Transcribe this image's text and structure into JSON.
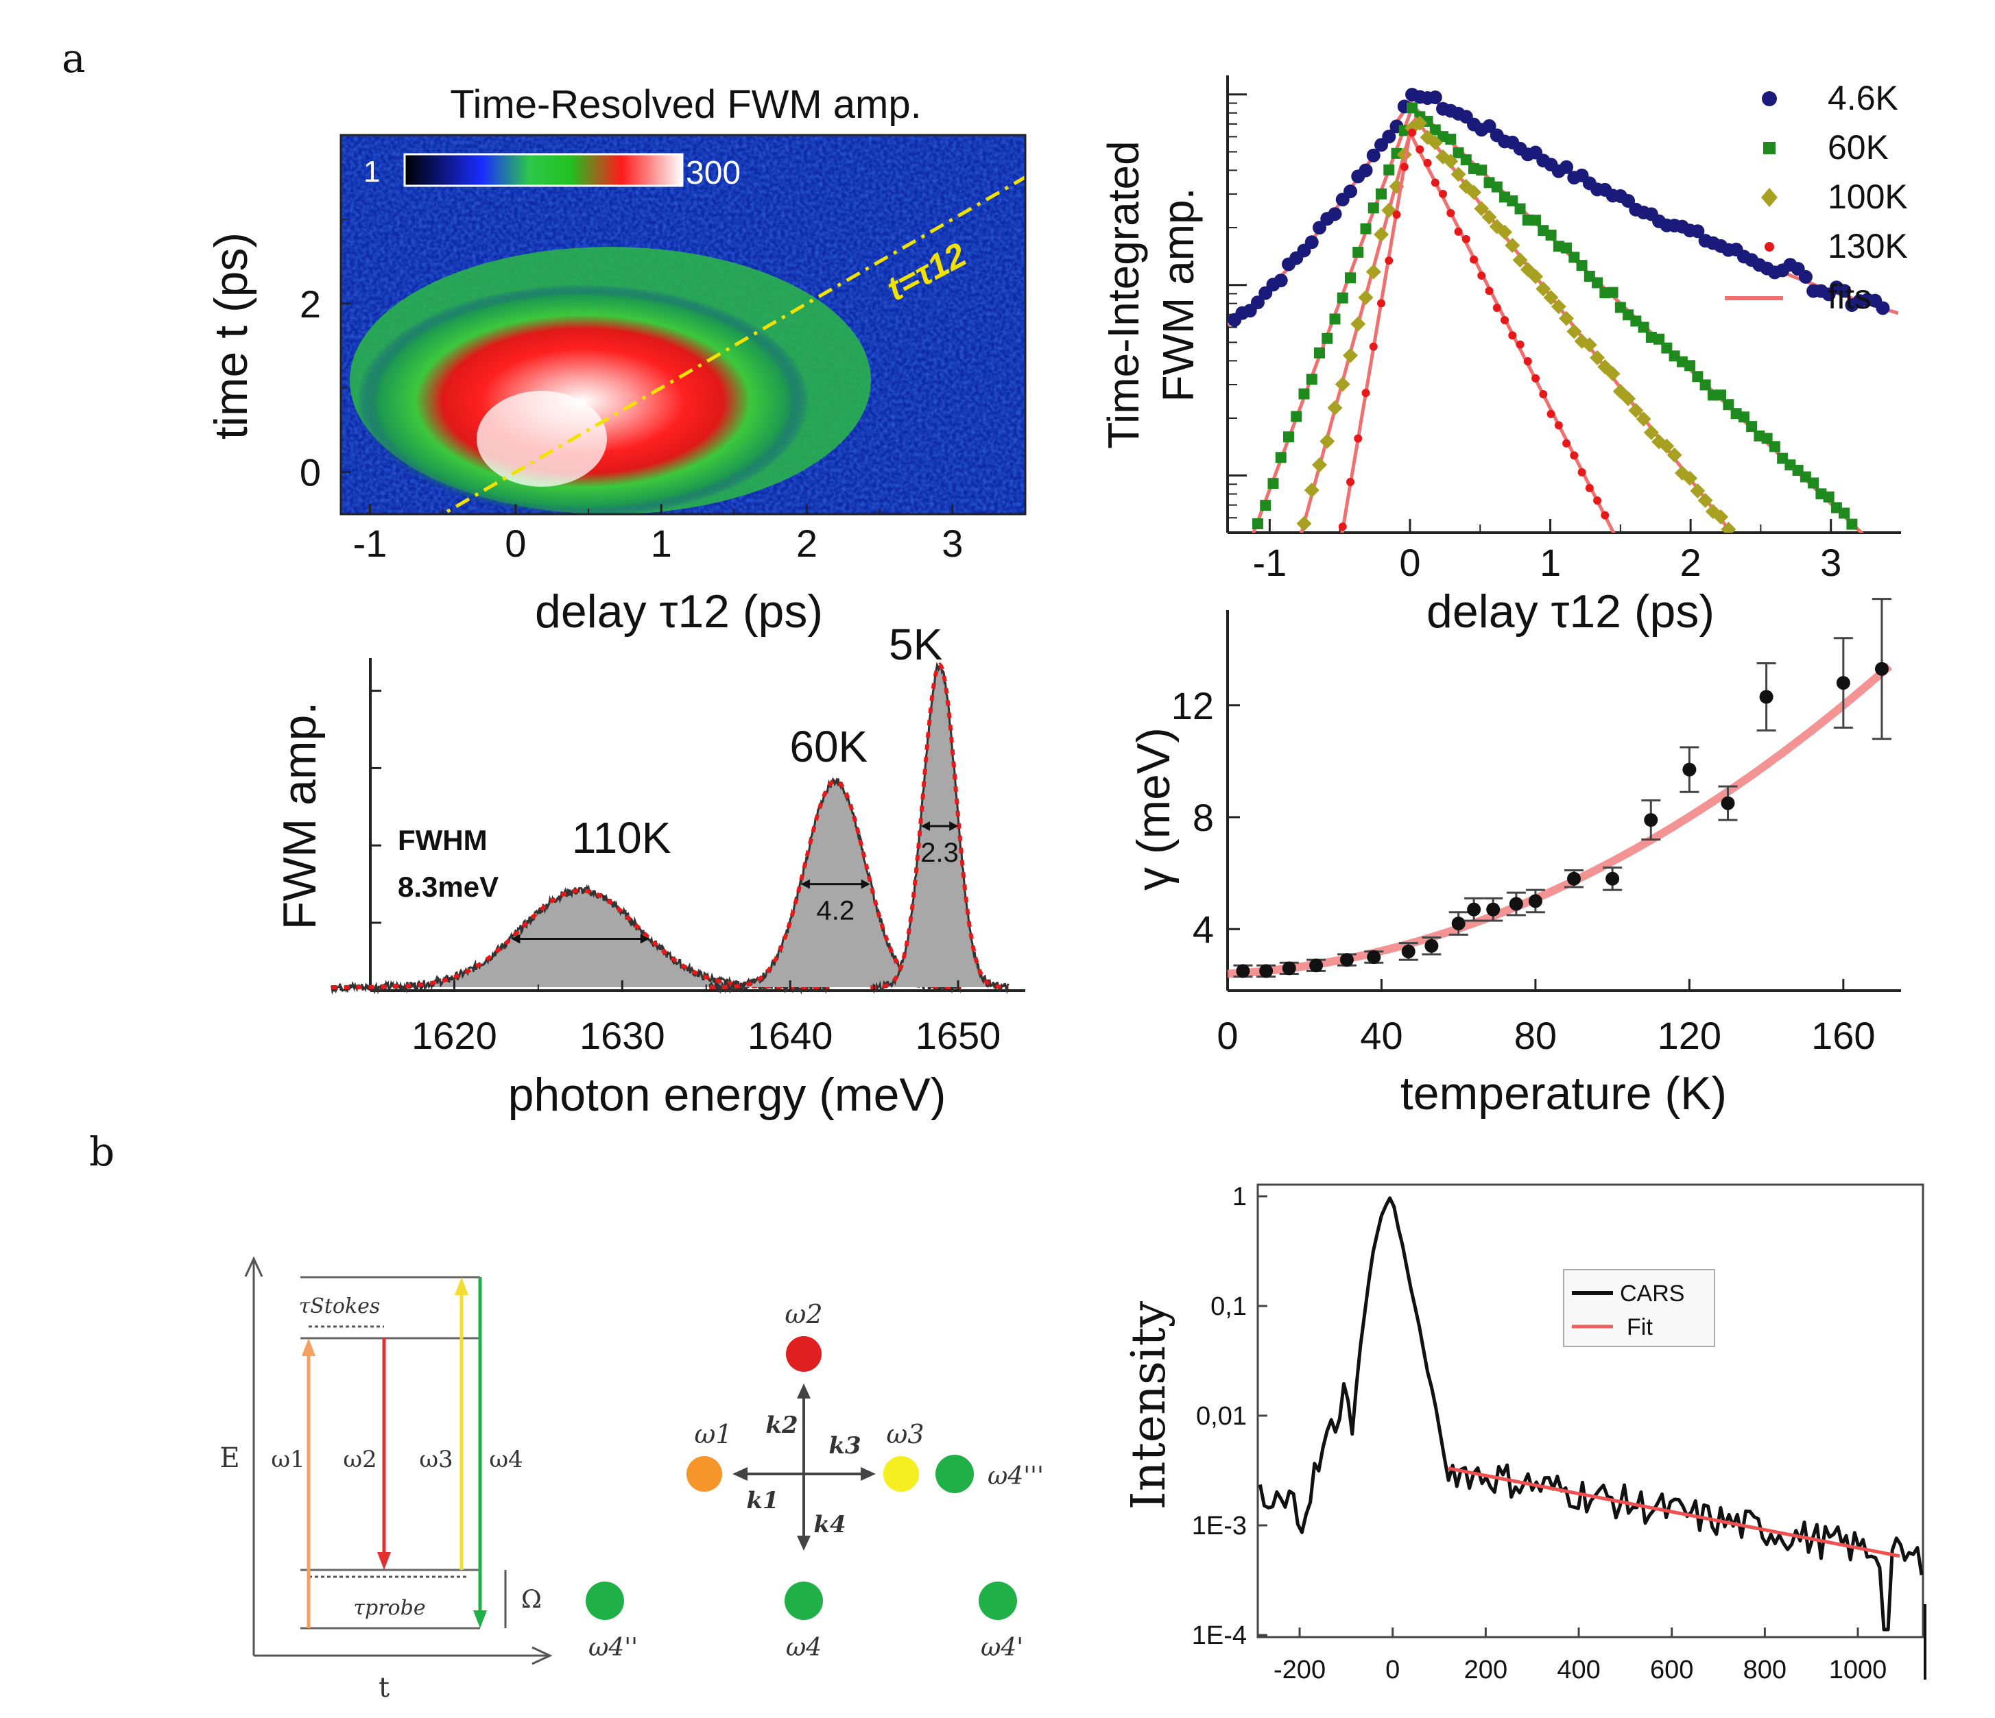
{
  "panel_labels": {
    "a": "a",
    "b": "b"
  },
  "colors": {
    "s46": "#1a1a7a",
    "s60": "#1e8a1e",
    "s100": "#a8a020",
    "s130": "#e81818",
    "fit": "#f07070",
    "yellow": "#f2e200",
    "orange": "#f5952a",
    "red": "#e02020",
    "green": "#20b048"
  },
  "chart_data": [
    {
      "id": "tr-fwm-map",
      "type": "heatmap",
      "title": "Time-Resolved FWM amp.",
      "xlabel": "delay τ12 (ps)",
      "ylabel": "time t (ps)",
      "xlim": [
        -1.2,
        3.5
      ],
      "ylim": [
        -0.5,
        4.0
      ],
      "xticks": [
        "-1",
        "0",
        "1",
        "2",
        "3"
      ],
      "yticks": [
        "0",
        "2"
      ],
      "colorbar": {
        "min_label": "1",
        "max_label": "300"
      },
      "annotation": {
        "text": "t=τ12",
        "line": "t = τ12"
      },
      "peak": {
        "delay": 0.1,
        "time": 0.3
      }
    },
    {
      "id": "ti-fwm-decay",
      "type": "scatter",
      "xlabel": "delay τ12 (ps)",
      "ylabel": "Time-Integrated FWM amp.",
      "yscale": "log",
      "xlim": [
        -1.3,
        3.5
      ],
      "xticks": [
        "-1",
        "0",
        "1",
        "2",
        "3"
      ],
      "legend": [
        "4.6K",
        "60K",
        "100K",
        "130K",
        "fits"
      ],
      "series": [
        {
          "name": "4.6K",
          "marker": "circle",
          "peak_delay": 0.05,
          "rise_ps": 0.38,
          "decay_ps": 1.05,
          "floor": 0.033
        },
        {
          "name": "60K",
          "marker": "square",
          "peak_delay": 0.02,
          "rise_ps": 0.22,
          "decay_ps": 0.62,
          "floor": 0.0
        },
        {
          "name": "100K",
          "marker": "diamond",
          "peak_delay": 0.03,
          "rise_ps": 0.16,
          "decay_ps": 0.45,
          "floor": 0.0
        },
        {
          "name": "130K",
          "marker": "circle",
          "peak_delay": 0.0,
          "rise_ps": 0.1,
          "decay_ps": 0.3,
          "floor": 0.0
        }
      ]
    },
    {
      "id": "fwm-spectra",
      "type": "area",
      "xlabel": "photon energy (meV)",
      "ylabel": "FWM amp.",
      "xlim": [
        1615,
        1654
      ],
      "xticks": [
        "1620",
        "1630",
        "1640",
        "1650"
      ],
      "series": [
        {
          "name": "110K",
          "center": 1627.5,
          "height": 0.3,
          "fwhm": 8.3,
          "width_label": ""
        },
        {
          "name": "60K",
          "center": 1642.7,
          "height": 0.64,
          "fwhm": 4.2,
          "width_label": "4.2"
        },
        {
          "name": "5K",
          "center": 1648.9,
          "height": 1.0,
          "fwhm": 2.3,
          "width_label": "2.3"
        }
      ],
      "fwhm_note": {
        "line1": "FWHM",
        "line2": "8.3meV"
      }
    },
    {
      "id": "gamma-vs-T",
      "type": "scatter",
      "xlabel": "temperature (K)",
      "ylabel": "γ (meV)",
      "xlim": [
        0,
        175
      ],
      "ylim": [
        1.8,
        15.4
      ],
      "xticks": [
        "0",
        "40",
        "80",
        "120",
        "160"
      ],
      "yticks": [
        "4",
        "8",
        "12"
      ],
      "x": [
        4,
        10,
        16,
        23,
        31,
        38,
        47,
        53,
        60,
        64,
        69,
        75,
        80,
        90,
        100,
        110,
        120,
        130,
        140,
        160,
        170
      ],
      "y": [
        2.5,
        2.5,
        2.6,
        2.7,
        2.9,
        3.0,
        3.2,
        3.4,
        4.2,
        4.7,
        4.7,
        4.9,
        5.0,
        5.8,
        5.8,
        7.9,
        9.7,
        8.5,
        12.3,
        12.8,
        13.3
      ],
      "err": [
        0.2,
        0.2,
        0.2,
        0.2,
        0.2,
        0.2,
        0.3,
        0.3,
        0.4,
        0.4,
        0.4,
        0.4,
        0.4,
        0.3,
        0.4,
        0.7,
        0.8,
        0.6,
        1.2,
        1.6,
        2.5
      ],
      "fit": {
        "a": 2.4,
        "b": 0.0072,
        "c": 0.00033
      }
    },
    {
      "id": "cars-decay",
      "type": "line",
      "xlabel": "",
      "ylabel": "Intensity",
      "yscale": "log",
      "xlim": [
        -290,
        1140
      ],
      "ylim_log10": [
        -4,
        0
      ],
      "xticks": [
        "-200",
        "0",
        "200",
        "400",
        "600",
        "800",
        "1000"
      ],
      "yticks": [
        "1",
        "0,1",
        "0,01",
        "1E-3",
        "1E-4"
      ],
      "legend": [
        "CARS",
        "Fit"
      ],
      "cars_peak_x": 0,
      "fit": {
        "start_x": 120,
        "end_x": 1090,
        "start_log10": -2.48,
        "end_log10": -3.28
      }
    }
  ],
  "diagram": {
    "energy_levels": {
      "axis_e": "E",
      "axis_t": "t",
      "tau_stokes": "τStokes",
      "tau_probe": "τprobe",
      "omega_gap": "Ω",
      "arrows": [
        "ω1",
        "ω2",
        "ω3",
        "ω4"
      ]
    },
    "wavevectors": {
      "dots": [
        "ω2",
        "ω1",
        "ω3",
        "ω4'''",
        "ω4''",
        "ω4",
        "ω4'"
      ],
      "vectors": [
        "k2",
        "k1",
        "k3",
        "k4"
      ]
    }
  }
}
